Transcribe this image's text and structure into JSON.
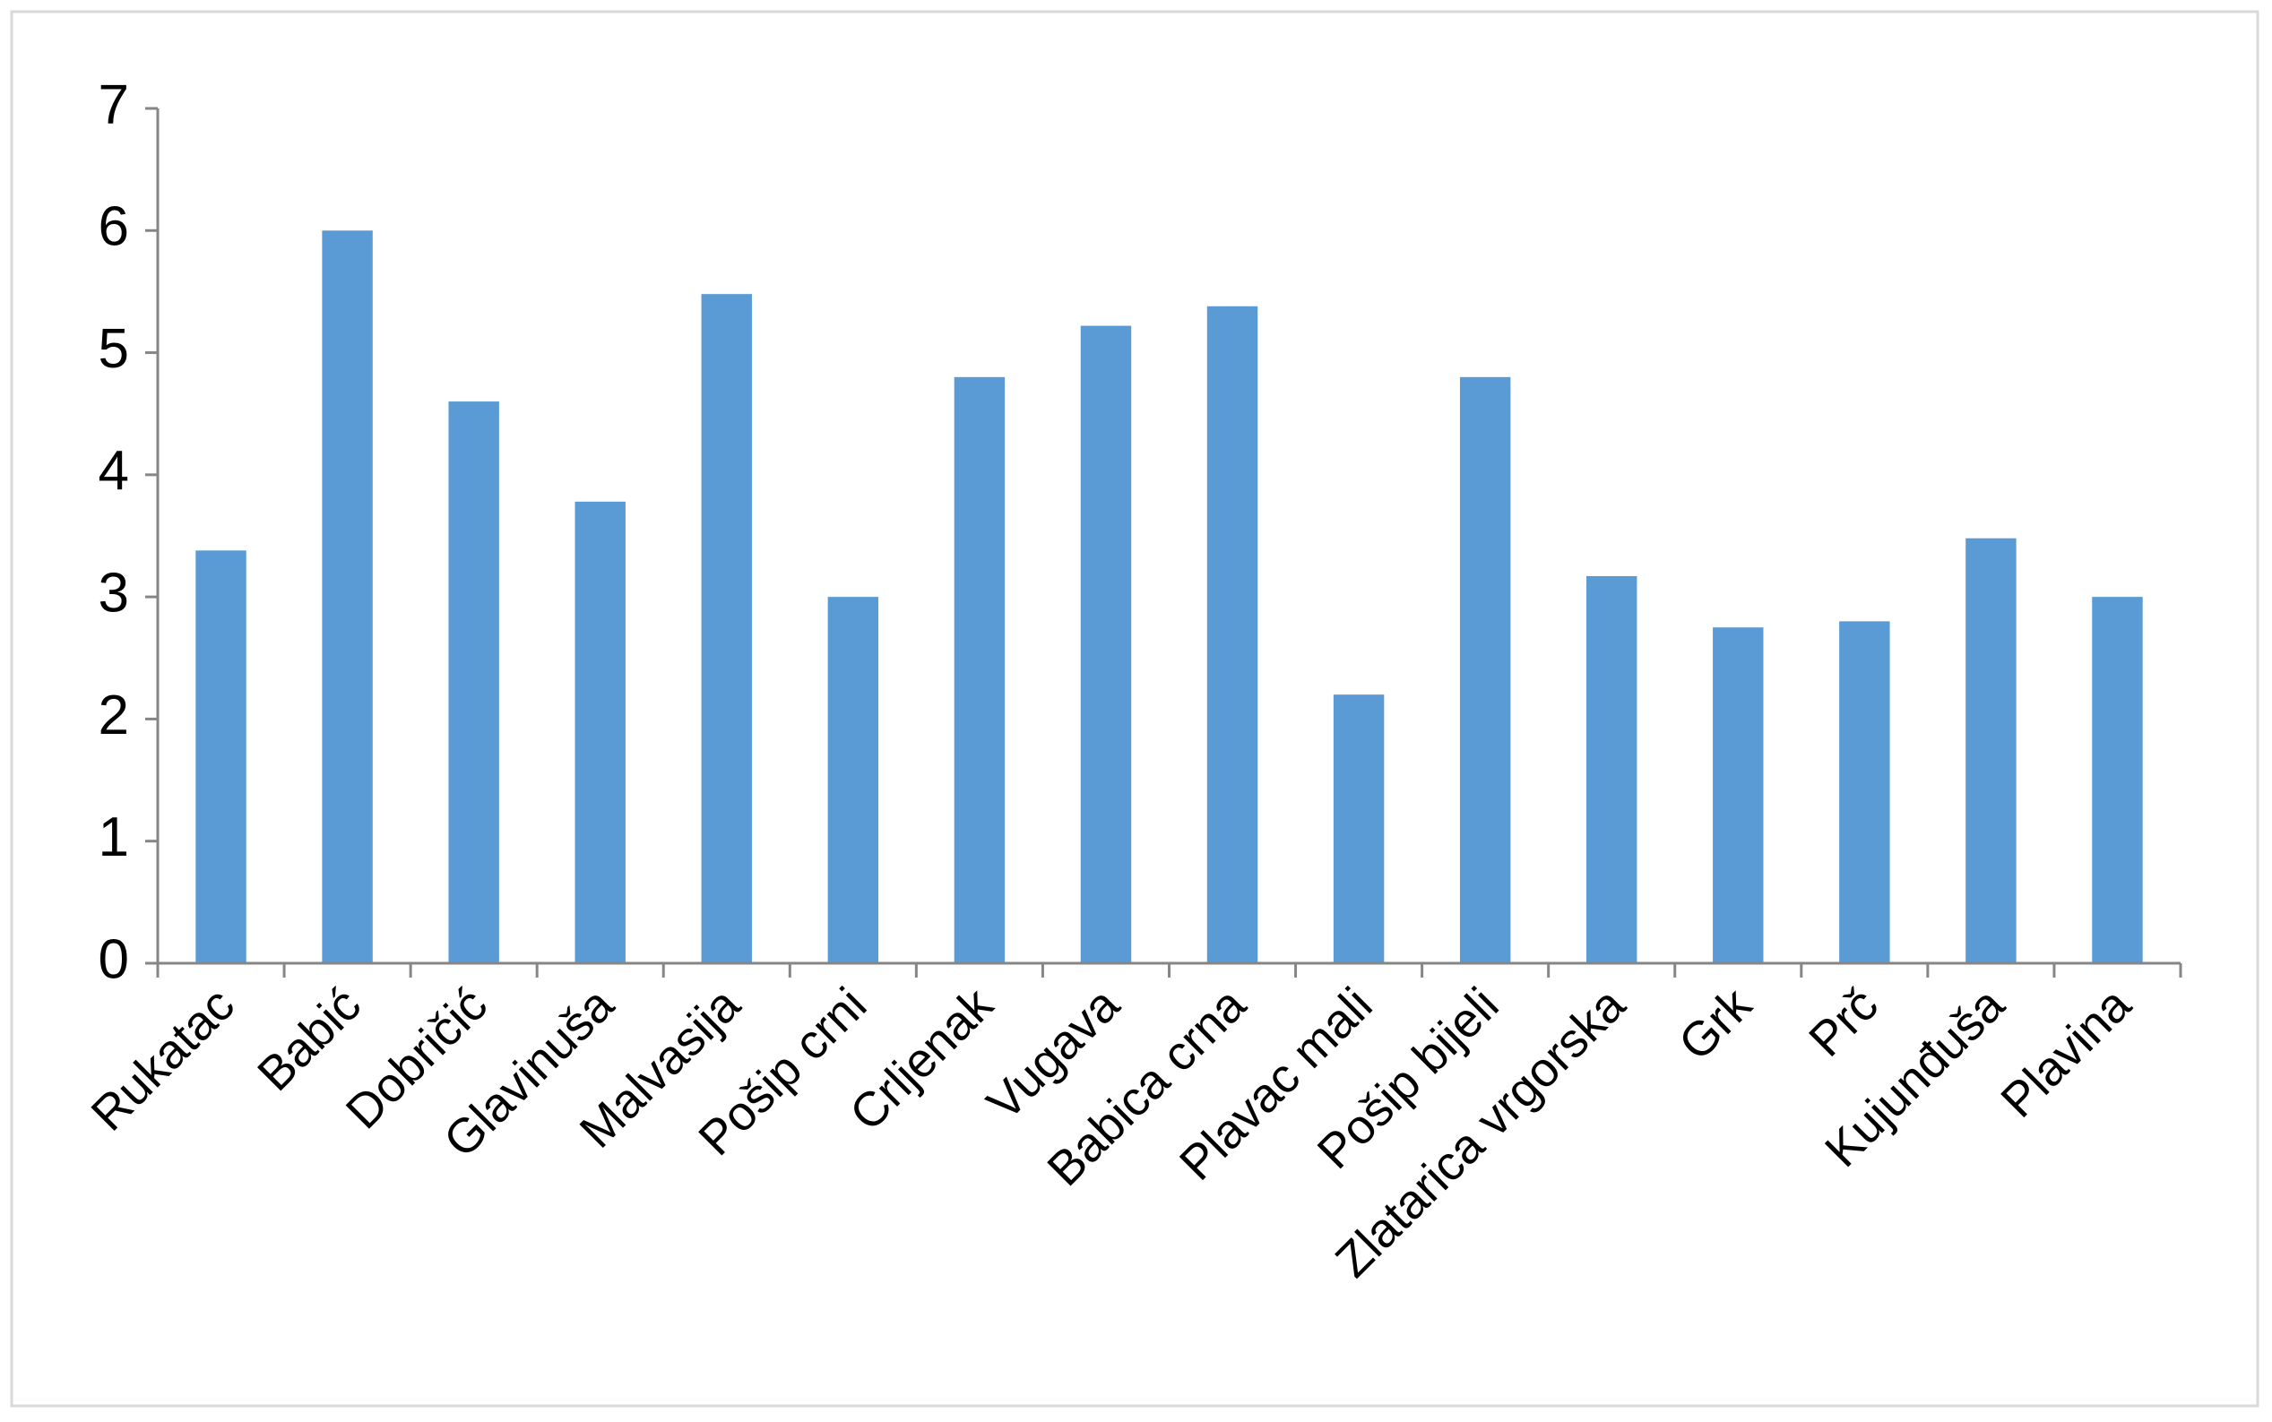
{
  "chart_data": {
    "type": "bar",
    "categories": [
      "Rukatac",
      "Babić",
      "Dobričić",
      "Glavinuša",
      "Malvasija",
      "Pošip crni",
      "Crljenak",
      "Vugava",
      "Babica crna",
      "Plavac mali",
      "Pošip bijeli",
      "Zlatarica vrgorska",
      "Grk",
      "Prč",
      "Kujunđuša",
      "Plavina"
    ],
    "values": [
      3.38,
      6.0,
      4.6,
      3.78,
      5.48,
      3.0,
      4.8,
      5.22,
      5.38,
      2.2,
      4.8,
      3.17,
      2.75,
      2.8,
      3.48,
      3.0
    ],
    "color": "#5b9bd5",
    "ylim": [
      0,
      7
    ],
    "yticks": [
      0,
      1,
      2,
      3,
      4,
      5,
      6,
      7
    ],
    "grid": false
  }
}
